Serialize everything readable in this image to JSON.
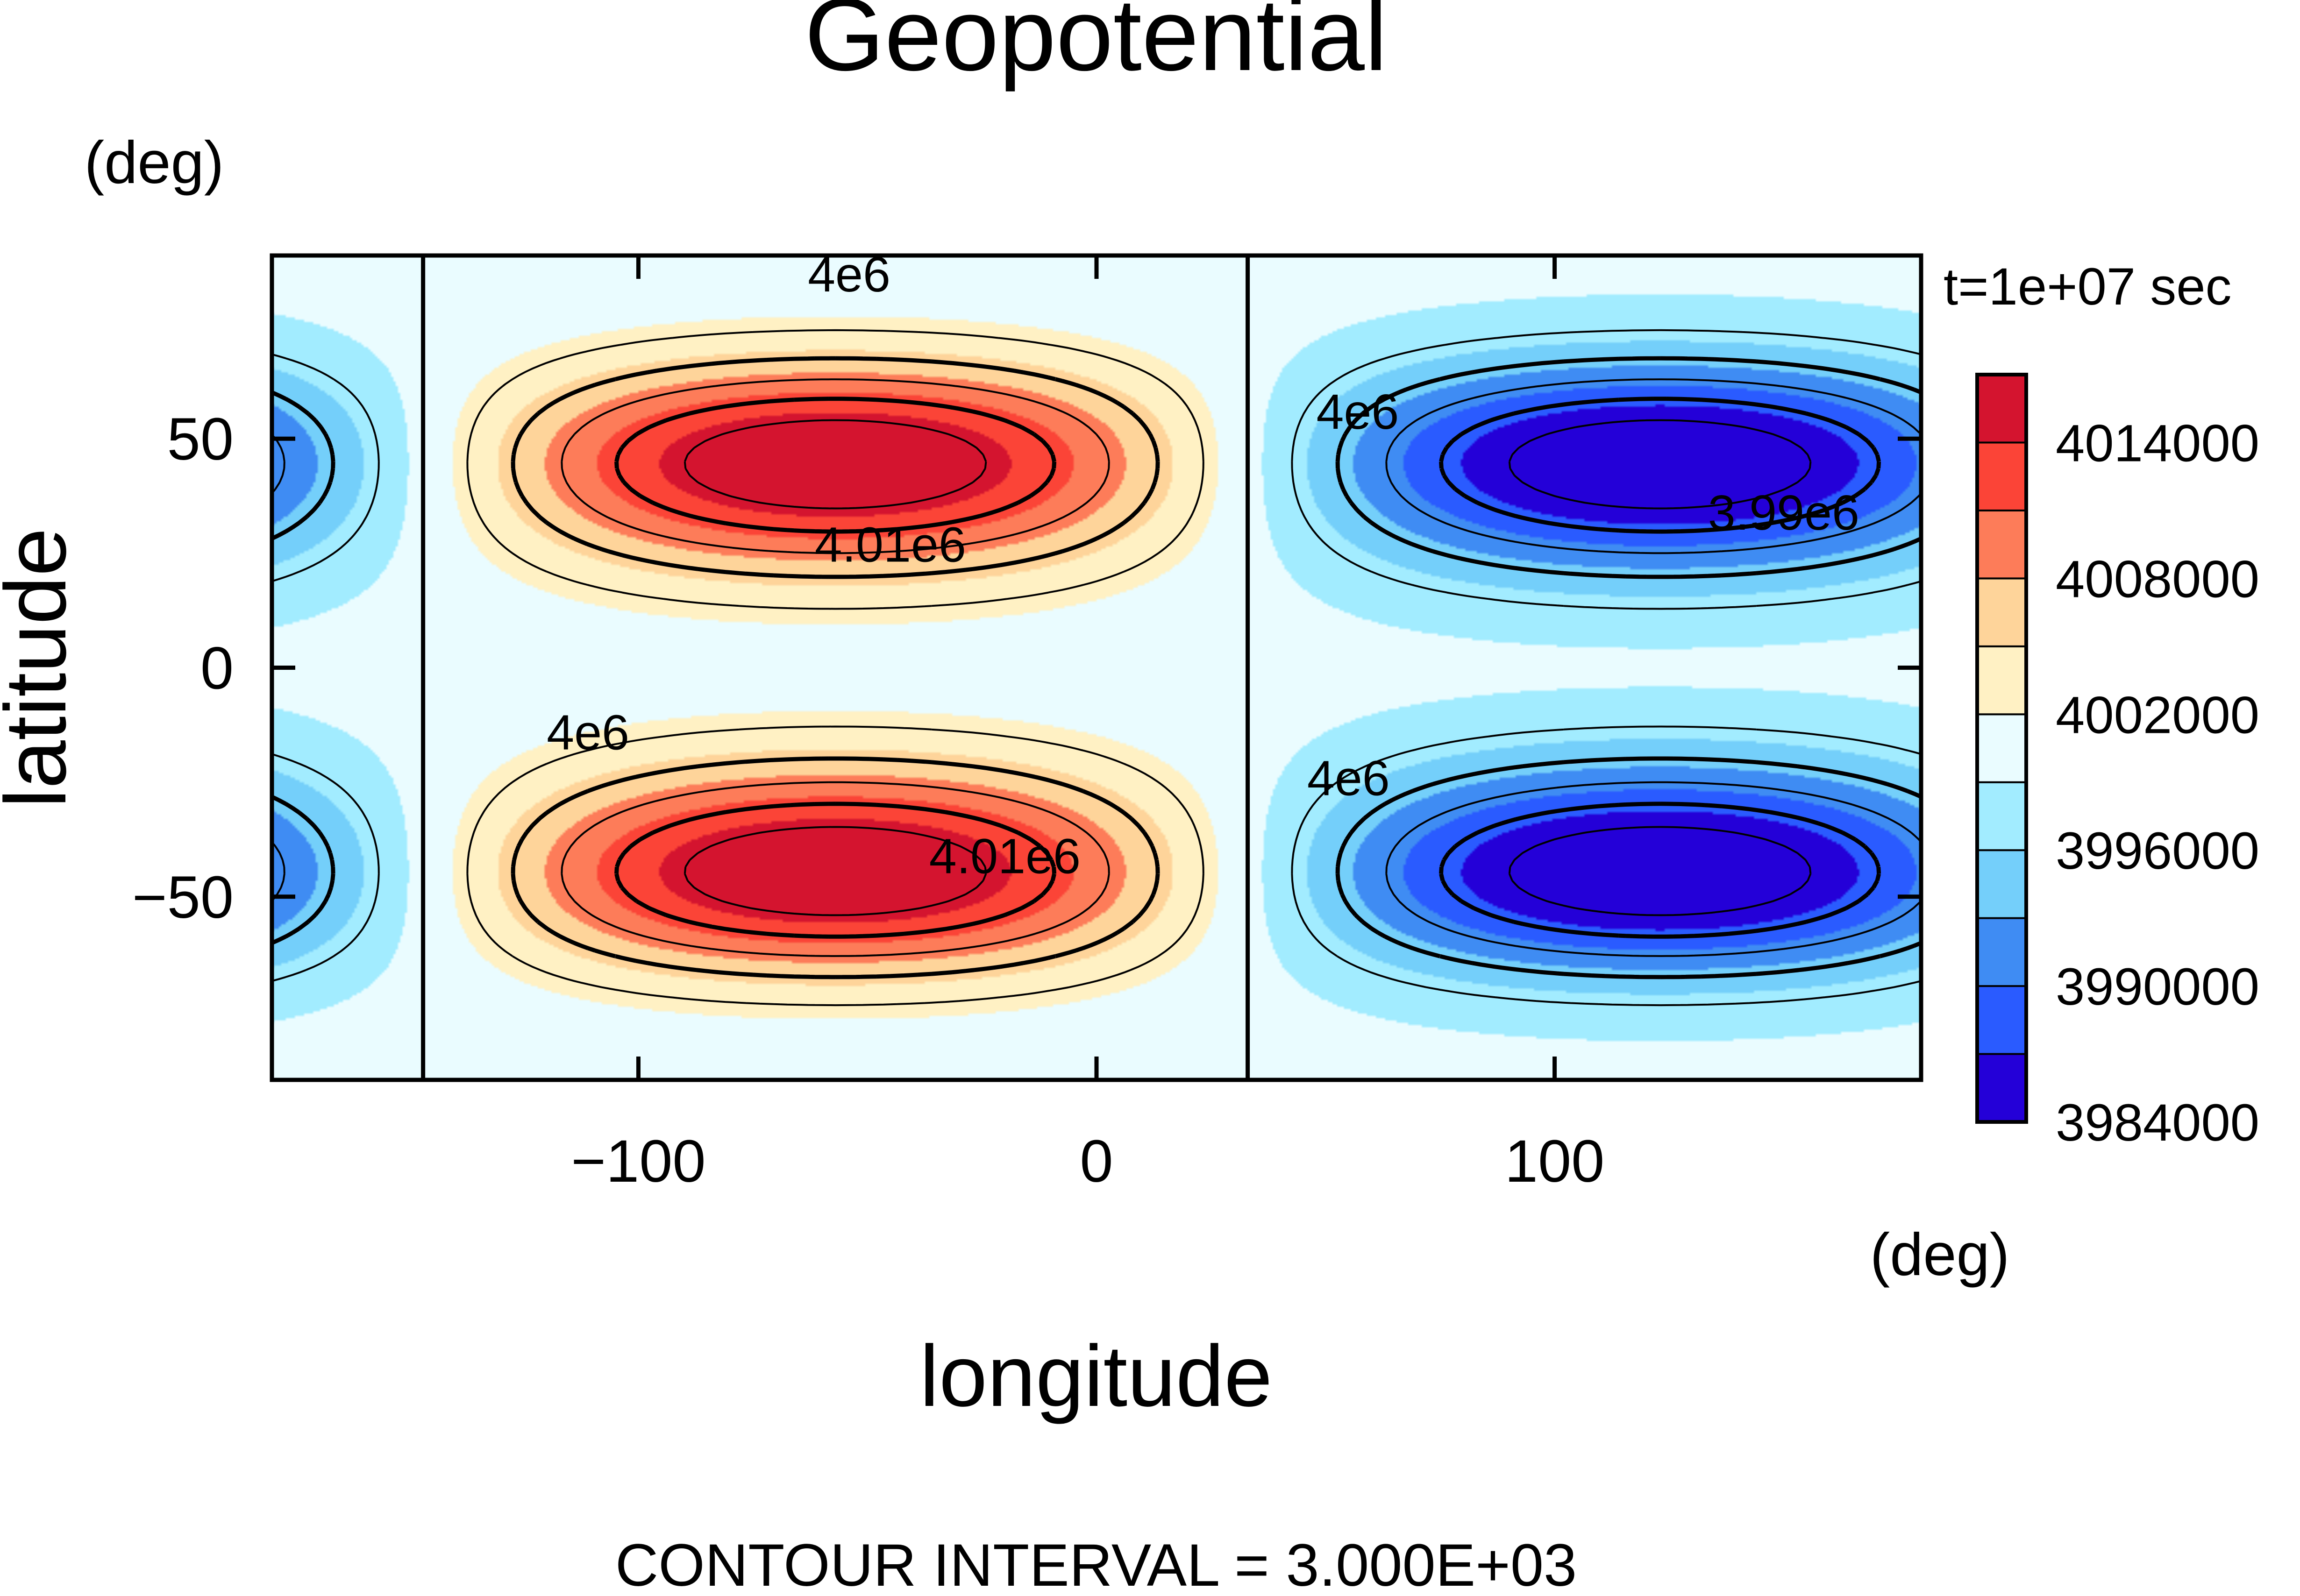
{
  "chart_data": {
    "type": "contour",
    "title": "Geopotential",
    "xlabel": "longitude",
    "ylabel": "latitude",
    "x_units": "(deg)",
    "y_units": "(deg)",
    "time_label": "t=1e+07 sec",
    "footer": "CONTOUR INTERVAL = 3.000E+03",
    "xlim": [
      -180,
      180
    ],
    "ylim": [
      -90,
      90
    ],
    "x_ticks": [
      -100,
      0,
      100
    ],
    "x_tick_labels": [
      "−100",
      "0",
      "100"
    ],
    "y_ticks": [
      -50,
      0,
      50
    ],
    "y_tick_labels": [
      "−50",
      "0",
      "50"
    ],
    "grid": false,
    "legend": "right",
    "field": {
      "mean": 4000000,
      "amplitude": 18000,
      "zonal_wavenumber": 1,
      "high_center_longitude": -57,
      "low_center_longitude": 123,
      "center_latitudes": [
        45,
        -45
      ],
      "note_shape": "two highs at 45N/45S near 57W, two lows near 123E"
    },
    "contour_interval": 3000,
    "colorbar": {
      "tick_labels": [
        "4014000",
        "4008000",
        "4002000",
        "3996000",
        "3990000",
        "3984000"
      ],
      "levels": [
        3984000,
        3987000,
        3990000,
        3993000,
        3996000,
        3999000,
        4002000,
        4005000,
        4008000,
        4011000,
        4014000,
        4017000
      ],
      "colors": [
        "#2400d8",
        "#2a5bff",
        "#3f8cf3",
        "#74cffa",
        "#a2ecff",
        "#eafcff",
        "#fff1c4",
        "#fed49a",
        "#fd7c59",
        "#fb4437",
        "#d4142f"
      ]
    },
    "contour_labels": [
      {
        "text": "4e6",
        "lon": -54,
        "lat": 85
      },
      {
        "text": "4.01e6",
        "lon": -45,
        "lat": 26
      },
      {
        "text": "4e6",
        "lon": 57,
        "lat": 55
      },
      {
        "text": "3.99e6",
        "lon": 150,
        "lat": 33
      },
      {
        "text": "4e6",
        "lon": -111,
        "lat": -15
      },
      {
        "text": "4.01e6",
        "lon": -20,
        "lat": -42
      },
      {
        "text": "4e6",
        "lon": 55,
        "lat": -25
      }
    ]
  }
}
